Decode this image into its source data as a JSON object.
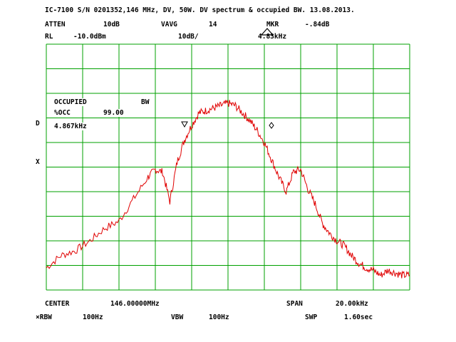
{
  "header": {
    "title": "IC-7100 S/N 0201352,146 MHz, DV, 50W. DV spectrum & occupied BW. 13.08.2013.",
    "atten_label": "ATTEN",
    "atten_value": "10dB",
    "vavg_label": "VAVG",
    "vavg_value": "14",
    "mkr_label": "MKR",
    "mkr_value": "-.84dB",
    "rl_label": "RL",
    "rl_value": "-10.0dBm",
    "scale_value": "10dB/",
    "mkr_freq": "4.83kHz"
  },
  "markers_text": {
    "occupied_label": "OCCUPIED",
    "bw_label": "BW",
    "pct_label": "%OCC",
    "pct_value": "99.00",
    "bw_value": "4.867kHz"
  },
  "side": {
    "d": "D",
    "x": "X"
  },
  "footer": {
    "center_label": "CENTER",
    "center_value": "146.00000MHz",
    "span_label": "SPAN",
    "span_value": "20.00kHz",
    "rbw_label": "×RBW",
    "rbw_value": "100Hz",
    "vbw_label": "VBW",
    "vbw_value": "100Hz",
    "swp_label": "SWP",
    "swp_value": "1.60sec"
  },
  "colors": {
    "grid": "#00a000",
    "trace": "#e00000"
  },
  "chart_data": {
    "type": "line",
    "x_unit": "kHz offset from center",
    "xlim": [
      -10,
      10
    ],
    "ylim": [
      -110,
      -10
    ],
    "grid": true,
    "x": [
      -10.0,
      -9.2,
      -8.4,
      -7.6,
      -6.8,
      -6.0,
      -5.2,
      -4.4,
      -4.0,
      -3.6,
      -3.2,
      -2.8,
      -2.4,
      -2.0,
      -1.6,
      -1.2,
      -0.8,
      -0.4,
      0.0,
      0.4,
      0.8,
      1.2,
      1.6,
      2.0,
      2.4,
      2.8,
      3.2,
      3.6,
      4.0,
      4.4,
      4.8,
      5.2,
      5.6,
      6.0,
      6.4,
      6.8,
      7.2,
      7.6,
      8.0,
      8.4,
      8.8,
      9.2,
      9.6,
      10.0
    ],
    "y": [
      -101,
      -96,
      -94,
      -90,
      -85,
      -82,
      -73,
      -64,
      -61,
      -62,
      -74,
      -58,
      -49,
      -43,
      -38,
      -37,
      -36,
      -35,
      -34,
      -35,
      -38,
      -41,
      -45,
      -50,
      -57,
      -64,
      -70,
      -62,
      -61,
      -69,
      -75,
      -83,
      -87,
      -90,
      -92,
      -96,
      -99,
      -101,
      -102,
      -104,
      -102,
      -103,
      -104,
      -104
    ]
  }
}
